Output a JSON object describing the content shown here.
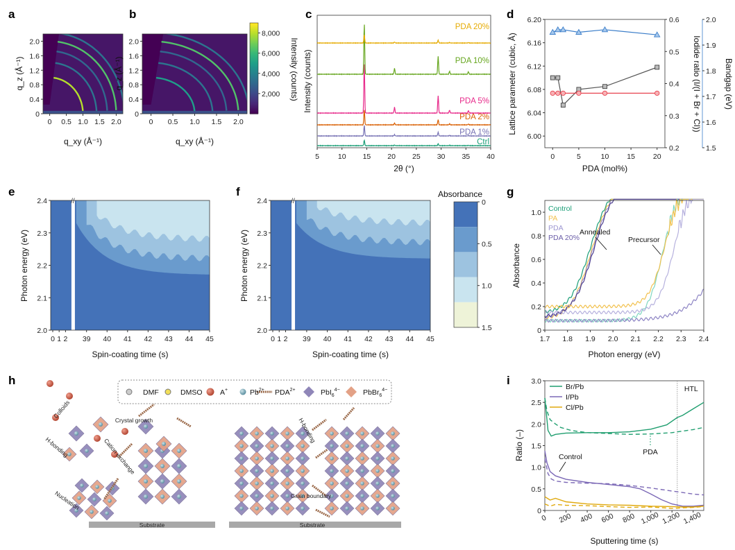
{
  "figure": {
    "panel_labels": [
      "a",
      "b",
      "c",
      "d",
      "e",
      "f",
      "g",
      "h",
      "i"
    ]
  },
  "chart_data": [
    {
      "panel": "a",
      "type": "heatmap",
      "xlabel": "q_xy (Å⁻¹)",
      "ylabel": "q_z (Å⁻¹)",
      "xticks": [
        "0",
        "0.5",
        "1.0",
        "1.5",
        "2.0"
      ],
      "xlim": [
        -0.2,
        2.2
      ],
      "yticks": [
        "0",
        "0.4",
        "0.8",
        "1.2",
        "1.6",
        "2.0"
      ],
      "ylim": [
        0,
        2.2
      ],
      "rings": [
        {
          "q": 1.0,
          "intensity": 8000,
          "arc": "partial"
        },
        {
          "q": 1.41,
          "intensity": 3500
        },
        {
          "q": 1.73,
          "intensity": 3000
        },
        {
          "q": 2.0,
          "intensity": 6500
        },
        {
          "q": 2.24,
          "intensity": 3500
        }
      ]
    },
    {
      "panel": "b",
      "type": "heatmap",
      "xlabel": "q_xy (Å⁻¹)",
      "ylabel": "q_z (Å⁻¹)",
      "xticks": [
        "0",
        "0.5",
        "1.0",
        "1.5",
        "2.0"
      ],
      "xlim": [
        -0.2,
        2.2
      ],
      "yticks": [
        "0",
        "0.4",
        "0.8",
        "1.2",
        "1.6",
        "2.0"
      ],
      "ylim": [
        0,
        2.2
      ],
      "rings": [
        {
          "q": 1.0,
          "intensity": 5000
        },
        {
          "q": 1.41,
          "intensity": 3500
        },
        {
          "q": 1.73,
          "intensity": 3000
        },
        {
          "q": 2.0,
          "intensity": 6500
        },
        {
          "q": 2.24,
          "intensity": 3500
        }
      ],
      "colorbar": {
        "label": "Intensity (counts)",
        "ticks": [
          "2,000",
          "4,000",
          "6,000",
          "8,000"
        ],
        "range": [
          0,
          9000
        ]
      }
    },
    {
      "panel": "c",
      "type": "line",
      "xlabel": "2θ (°)",
      "ylabel": "Intensity (counts)",
      "xticks": [
        "5",
        "10",
        "15",
        "20",
        "25",
        "30",
        "35",
        "40"
      ],
      "xlim": [
        5,
        40
      ],
      "peaks": [
        {
          "pos": 14.5,
          "rel": 1.0
        },
        {
          "pos": 20.6,
          "rel": 0.12
        },
        {
          "pos": 29.4,
          "rel": 0.35
        },
        {
          "pos": 31.7,
          "rel": 0.06
        },
        {
          "pos": 35.5,
          "rel": 0.05
        }
      ],
      "series": [
        {
          "name": "Ctrl",
          "color": "#1b9e77",
          "offset": 0,
          "peak_height": 8
        },
        {
          "name": "PDA 1%",
          "color": "#7570b3",
          "offset": 1,
          "peak_height": 15
        },
        {
          "name": "PDA 2%",
          "color": "#d95f02",
          "offset": 2,
          "peak_height": 22
        },
        {
          "name": "PDA 5%",
          "color": "#e7298a",
          "offset": 3,
          "peak_height": 72
        },
        {
          "name": "PDA 10%",
          "color": "#66a61e",
          "offset": 4,
          "peak_height": 74
        },
        {
          "name": "PDA 20%",
          "color": "#e6ab02",
          "offset": 5,
          "peak_height": 12
        }
      ]
    },
    {
      "panel": "d",
      "type": "line",
      "xlabel": "PDA (mol%)",
      "xticks": [
        "0",
        "5",
        "10",
        "15",
        "20"
      ],
      "xlim": [
        -1.5,
        21.5
      ],
      "y_left": {
        "label": "Lattice parameter (cubic, Å)",
        "ticks": [
          "6.00",
          "6.04",
          "6.08",
          "6.12",
          "6.16",
          "6.20"
        ],
        "lim": [
          5.98,
          6.2
        ]
      },
      "y_right1": {
        "label": "Iodide ratio (I/(I + Br + Cl))",
        "ticks": [
          "0.2",
          "0.3",
          "0.4",
          "0.5",
          "0.6"
        ],
        "lim": [
          0.2,
          0.6
        ],
        "color": "#e8434f"
      },
      "y_right2": {
        "label": "Bandgap (eV)",
        "ticks": [
          "1.5",
          "1.6",
          "1.7",
          "1.8",
          "1.9",
          "2.0"
        ],
        "lim": [
          1.5,
          2.0
        ],
        "color": "#3a7dc9"
      },
      "x": [
        0,
        1,
        2,
        5,
        10,
        20
      ],
      "series": [
        {
          "name": "Lattice parameter",
          "axis": "left",
          "marker": "square",
          "values": [
            6.1,
            6.1,
            6.053,
            6.08,
            6.085,
            6.118
          ]
        },
        {
          "name": "Iodide ratio",
          "axis": "right1",
          "marker": "circle",
          "values": [
            0.37,
            0.37,
            0.37,
            0.37,
            0.37,
            0.37
          ]
        },
        {
          "name": "Bandgap",
          "axis": "right2",
          "marker": "triangle",
          "values": [
            1.95,
            1.96,
            1.96,
            1.95,
            1.96,
            1.94
          ]
        }
      ]
    },
    {
      "panel": "e",
      "type": "heatmap",
      "xlabel": "Spin-coating time (s)",
      "ylabel": "Photon energy (eV)",
      "xticks_left": [
        "0",
        "1",
        "2"
      ],
      "xticks_right": [
        "39",
        "40",
        "41",
        "42",
        "43",
        "44",
        "45"
      ],
      "yticks": [
        "2.0",
        "2.1",
        "2.2",
        "2.3",
        "2.4"
      ],
      "ylim": [
        2.0,
        2.4
      ],
      "edge_start_eV": 2.33,
      "edge_final_eV": 2.17
    },
    {
      "panel": "f",
      "type": "heatmap",
      "xlabel": "Spin-coating time (s)",
      "ylabel": "Photon energy (eV)",
      "xticks_left": [
        "0",
        "1",
        "2"
      ],
      "xticks_right": [
        "39",
        "40",
        "41",
        "42",
        "43",
        "44",
        "45"
      ],
      "yticks": [
        "2.0",
        "2.1",
        "2.2",
        "2.3",
        "2.4"
      ],
      "ylim": [
        2.0,
        2.4
      ],
      "edge_start_eV": 2.33,
      "edge_final_eV": 2.22,
      "colorbar": {
        "label": "Absorbance",
        "ticks": [
          "0",
          "0.5",
          "1.0",
          "1.5"
        ],
        "range": [
          0,
          1.5
        ],
        "colors": [
          "#4472b8",
          "#6a9bcd",
          "#9dc3e0",
          "#c9e4ef",
          "#eef3d8"
        ]
      }
    },
    {
      "panel": "g",
      "type": "line",
      "xlabel": "Photon energy (eV)",
      "ylabel": "Absorbance",
      "xticks": [
        "1.7",
        "1.8",
        "1.9",
        "2.0",
        "2.1",
        "2.2",
        "2.3",
        "2.4"
      ],
      "xlim": [
        1.7,
        2.4
      ],
      "yticks": [
        "0",
        "0.2",
        "0.4",
        "0.6",
        "0.8",
        "1.0"
      ],
      "ylim": [
        0,
        1.1
      ],
      "legend": [
        {
          "name": "Control",
          "color": "#1b9e77"
        },
        {
          "name": "PA",
          "color": "#f2c14e"
        },
        {
          "name": "PDA",
          "color": "#9c96d1"
        },
        {
          "name": "PDA 20%",
          "color": "#6b5ea8"
        }
      ],
      "annotations": [
        "Annealed",
        "Precursor"
      ],
      "series": [
        {
          "name": "Annealed Control",
          "color": "#1b9e77",
          "base": 0.14,
          "edge": 1.9,
          "width": 0.045
        },
        {
          "name": "Annealed PA",
          "color": "#f2c14e",
          "base": 0.09,
          "edge": 1.905,
          "width": 0.045
        },
        {
          "name": "Annealed PDA",
          "color": "#9c96d1",
          "base": 0.1,
          "edge": 1.91,
          "width": 0.045
        },
        {
          "name": "Annealed PDA 20%",
          "color": "#4e3f8f",
          "base": 0.11,
          "edge": 1.915,
          "width": 0.045
        },
        {
          "name": "Precursor Control",
          "color": "#7fd6c0",
          "base": 0.08,
          "edge": 2.22,
          "width": 0.035
        },
        {
          "name": "Precursor PA",
          "color": "#f2c14e",
          "base": 0.2,
          "edge": 2.23,
          "width": 0.035
        },
        {
          "name": "Precursor PDA",
          "color": "#b6b1de",
          "base": 0.15,
          "edge": 2.27,
          "width": 0.035
        },
        {
          "name": "Precursor PDA 20%",
          "color": "#8d84c4",
          "base": 0.08,
          "edge": 2.5,
          "width": 0.08
        }
      ]
    },
    {
      "panel": "h",
      "type": "table",
      "legend": [
        {
          "name": "DMF",
          "sup": ""
        },
        {
          "name": "DMSO",
          "sup": ""
        },
        {
          "name": "A",
          "sup": "+"
        },
        {
          "name": "Pb",
          "sup": "2+"
        },
        {
          "name": "PDA",
          "sup": "2+"
        },
        {
          "name": "PbI",
          "sub": "6",
          "sup": "4−"
        },
        {
          "name": "PbBr",
          "sub": "6",
          "sup": "4−"
        }
      ],
      "labels": [
        "Colloids",
        "Crystal growth",
        "H-bonding",
        "Cation exchange",
        "Nucleation",
        "Substrate",
        "H-bonding",
        "Grain boundary",
        "Substrate"
      ]
    },
    {
      "panel": "i",
      "type": "line",
      "xlabel": "Sputtering time (s)",
      "ylabel": "Ratio (–)",
      "xticks": [
        "0",
        "200",
        "400",
        "600",
        "800",
        "1,000",
        "1,200",
        "1,400"
      ],
      "xlim": [
        0,
        1500
      ],
      "yticks": [
        "0",
        "0.5",
        "1.0",
        "1.5",
        "2.0",
        "2.5",
        "3.0"
      ],
      "ylim": [
        0,
        3.0
      ],
      "htl_position": 1250,
      "htl_label": "HTL",
      "legend": [
        {
          "name": "Br/Pb",
          "color": "#1f9e6f"
        },
        {
          "name": "I/Pb",
          "color": "#7b68b6"
        },
        {
          "name": "Cl/Pb",
          "color": "#e0a90d"
        }
      ],
      "annotations": [
        "Control",
        "PDA"
      ],
      "series": [
        {
          "name": "Br/Pb Control",
          "style": "solid",
          "color": "#1f9e6f",
          "x": [
            0,
            30,
            60,
            100,
            200,
            400,
            600,
            800,
            1000,
            1150,
            1250,
            1300,
            1400,
            1500
          ],
          "y": [
            2.6,
            1.85,
            1.72,
            1.76,
            1.79,
            1.8,
            1.8,
            1.82,
            1.88,
            1.98,
            2.15,
            2.2,
            2.35,
            2.5
          ]
        },
        {
          "name": "Br/Pb PDA",
          "style": "dashed",
          "color": "#1f9e6f",
          "x": [
            0,
            20,
            50,
            100,
            150,
            250,
            400,
            600,
            800,
            1000,
            1200,
            1400,
            1500
          ],
          "y": [
            2.6,
            2.3,
            2.1,
            2.0,
            1.92,
            1.85,
            1.8,
            1.78,
            1.76,
            1.77,
            1.8,
            1.87,
            1.92
          ]
        },
        {
          "name": "I/Pb Control",
          "style": "solid",
          "color": "#7b68b6",
          "x": [
            0,
            20,
            50,
            100,
            200,
            400,
            600,
            800,
            900,
            1000,
            1100,
            1200,
            1300,
            1400,
            1500
          ],
          "y": [
            1.38,
            1.1,
            0.9,
            0.8,
            0.72,
            0.65,
            0.6,
            0.55,
            0.5,
            0.38,
            0.25,
            0.15,
            0.1,
            0.1,
            0.12
          ]
        },
        {
          "name": "I/Pb PDA",
          "style": "dashed",
          "color": "#7b68b6",
          "x": [
            0,
            30,
            60,
            100,
            200,
            400,
            600,
            800,
            1000,
            1200,
            1400,
            1500
          ],
          "y": [
            1.2,
            0.85,
            0.73,
            0.68,
            0.65,
            0.63,
            0.62,
            0.58,
            0.52,
            0.45,
            0.38,
            0.36
          ]
        },
        {
          "name": "Cl/Pb Control",
          "style": "solid",
          "color": "#e0a90d",
          "x": [
            0,
            50,
            100,
            200,
            400,
            600,
            800,
            1000,
            1200,
            1300,
            1400,
            1500
          ],
          "y": [
            0.32,
            0.24,
            0.28,
            0.2,
            0.15,
            0.13,
            0.12,
            0.1,
            0.09,
            0.08,
            0.08,
            0.1
          ]
        },
        {
          "name": "Cl/Pb PDA",
          "style": "dashed",
          "color": "#e0a90d",
          "x": [
            0,
            50,
            100,
            200,
            400,
            600,
            800,
            1000,
            1200,
            1400,
            1500
          ],
          "y": [
            0.15,
            0.1,
            0.14,
            0.12,
            0.11,
            0.09,
            0.07,
            0.08,
            0.05,
            0.07,
            0.09
          ]
        }
      ]
    }
  ]
}
